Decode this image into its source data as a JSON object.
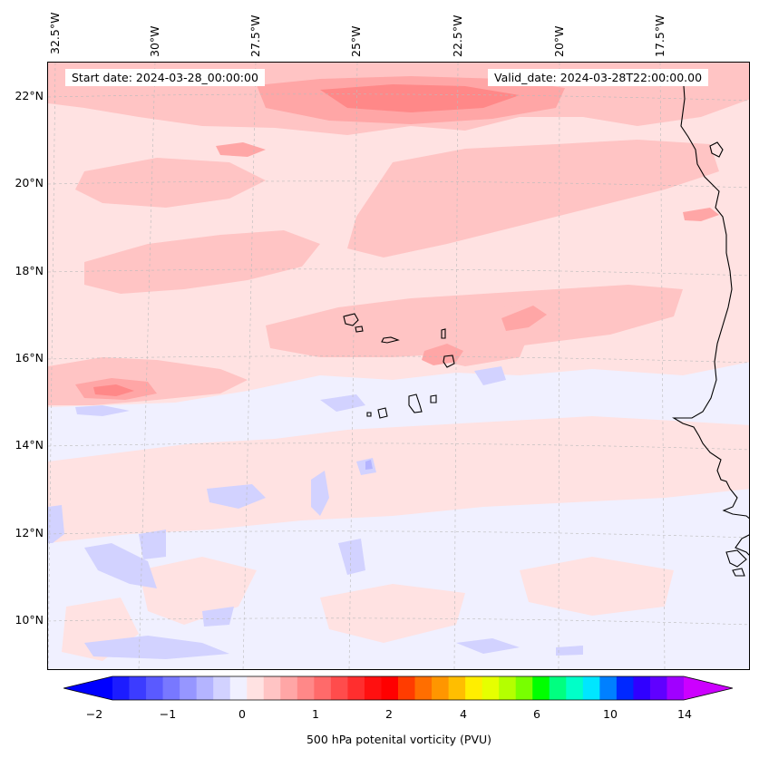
{
  "header": {
    "start_date": "Start date: 2024-03-28_00:00:00",
    "valid_date": "Valid_date: 2024-03-28T22:00:00.00"
  },
  "longitude_labels": [
    "32.5°W",
    "30°W",
    "27.5°W",
    "25°W",
    "22.5°W",
    "20°W",
    "17.5°W"
  ],
  "latitude_labels": [
    "22°N",
    "20°N",
    "18°N",
    "16°N",
    "14°N",
    "12°N",
    "10°N"
  ],
  "colorbar": {
    "label": "500 hPa potenital vorticity (PVU)",
    "ticks": [
      "−2",
      "−1",
      "0",
      "1",
      "2",
      "4",
      "6",
      "10",
      "14"
    ],
    "colors": [
      "#1c1cff",
      "#3c3cff",
      "#5a5aff",
      "#7878ff",
      "#9696ff",
      "#b4b4ff",
      "#d2d2ff",
      "#f0f0ff",
      "#ffe2e2",
      "#ffc4c4",
      "#ffa6a6",
      "#ff8888",
      "#ff6a6a",
      "#ff4c4c",
      "#ff2e2e",
      "#ff1010",
      "#ff0000",
      "#ff3c00",
      "#ff6e00",
      "#ff9600",
      "#ffbe00",
      "#ffee00",
      "#e6ff00",
      "#b4ff00",
      "#78ff00",
      "#00ff00",
      "#00ff80",
      "#00ffc8",
      "#00e6ff",
      "#0080ff",
      "#0028ff",
      "#3000ff",
      "#6000ff",
      "#a000ff"
    ],
    "extend_low_color": "#0000ff",
    "extend_high_color": "#cc00ff"
  },
  "field_colors": {
    "background": "#f0f0ff",
    "light_pink": "#ffe2e2",
    "pink": "#ffc4c4",
    "medium_pink": "#ffa6a6",
    "red_pink": "#ff8888",
    "light_blue": "#d2d2ff",
    "blue": "#b4b4ff"
  }
}
